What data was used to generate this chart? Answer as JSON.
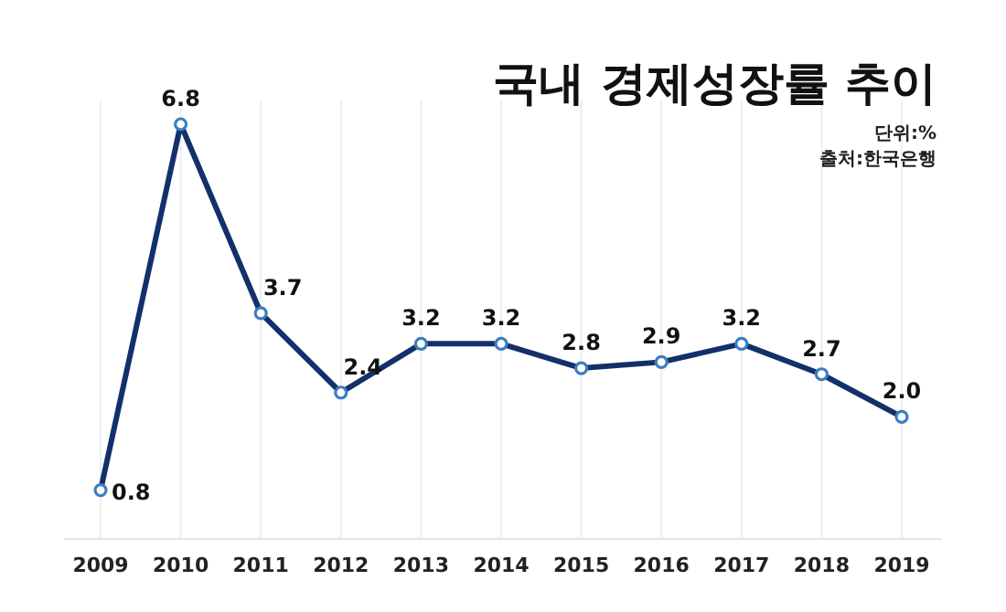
{
  "chart_data": {
    "type": "line",
    "title": "국내 경제성장률 추이",
    "annotations": [
      "단위:%",
      "출처:한국은행"
    ],
    "categories": [
      "2009",
      "2010",
      "2011",
      "2012",
      "2013",
      "2014",
      "2015",
      "2016",
      "2017",
      "2018",
      "2019"
    ],
    "series": [
      {
        "color": "#13306b",
        "values": [
          0.8,
          6.8,
          3.7,
          2.4,
          3.2,
          3.2,
          2.8,
          2.9,
          3.2,
          2.7,
          2.0
        ],
        "value_labels": [
          "0.8",
          "6.8",
          "3.7",
          "2.4",
          "3.2",
          "3.2",
          "2.8",
          "2.9",
          "3.2",
          "2.7",
          "2.0"
        ]
      }
    ],
    "grid": "x",
    "marker": "circle",
    "line_style": "solid"
  }
}
